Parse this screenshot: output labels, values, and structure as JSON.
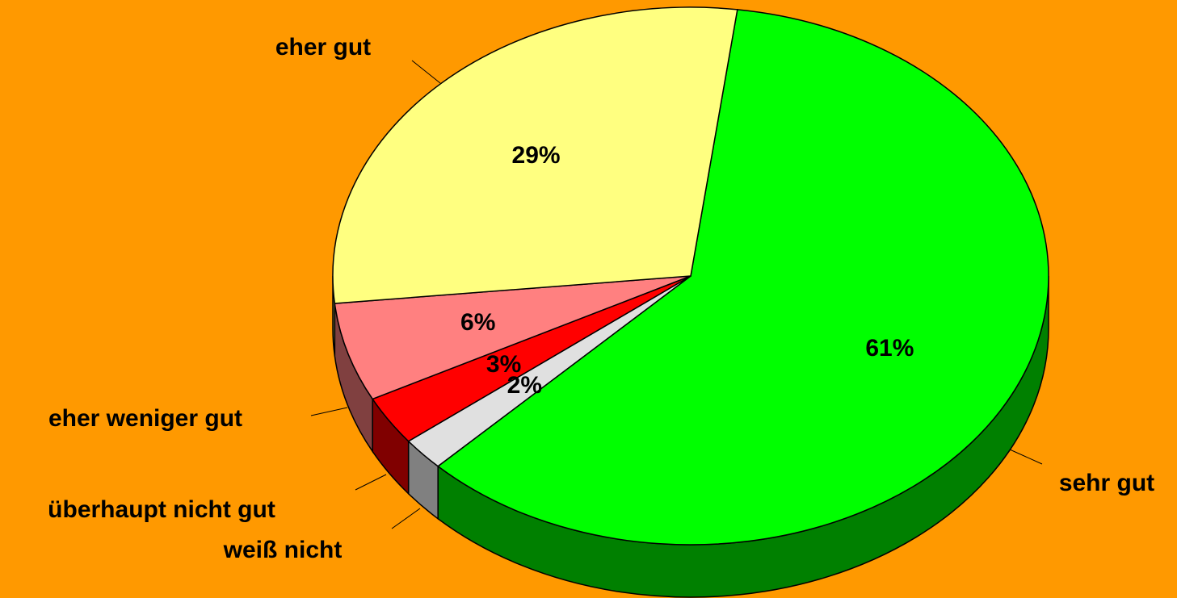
{
  "chart_data": {
    "type": "pie",
    "categories": [
      "sehr gut",
      "weiß nicht",
      "überhaupt nicht gut",
      "eher weniger gut",
      "eher gut"
    ],
    "values": [
      61,
      2,
      3,
      6,
      29
    ],
    "value_labels": [
      "61%",
      "2%",
      "3%",
      "6%",
      "29%"
    ],
    "colors": [
      "#00ff00",
      "#e0e0e0",
      "#ff0000",
      "#ff8080",
      "#ffff80"
    ],
    "side_colors": [
      "#008000",
      "#808080",
      "#800000",
      "#804040",
      "#808040"
    ]
  }
}
